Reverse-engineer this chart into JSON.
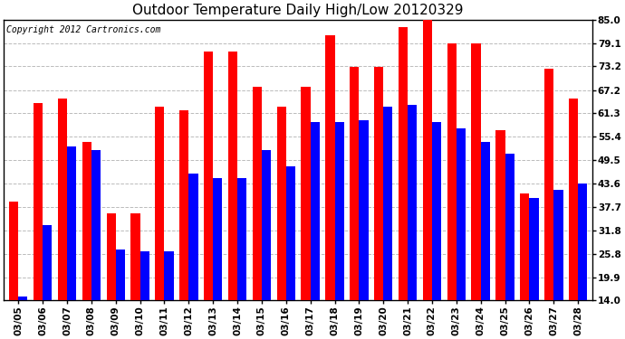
{
  "title": "Outdoor Temperature Daily High/Low 20120329",
  "copyright": "Copyright 2012 Cartronics.com",
  "dates": [
    "03/05",
    "03/06",
    "03/07",
    "03/08",
    "03/09",
    "03/10",
    "03/11",
    "03/12",
    "03/13",
    "03/14",
    "03/15",
    "03/16",
    "03/17",
    "03/18",
    "03/19",
    "03/20",
    "03/21",
    "03/22",
    "03/23",
    "03/24",
    "03/25",
    "03/26",
    "03/27",
    "03/28"
  ],
  "highs": [
    39.0,
    64.0,
    65.0,
    54.0,
    36.0,
    36.0,
    63.0,
    62.0,
    77.0,
    77.0,
    68.0,
    63.0,
    68.0,
    81.0,
    73.0,
    73.0,
    83.0,
    85.0,
    79.0,
    79.0,
    57.0,
    41.0,
    72.5,
    65.0
  ],
  "lows": [
    15.0,
    33.0,
    53.0,
    52.0,
    27.0,
    26.5,
    26.5,
    46.0,
    45.0,
    45.0,
    52.0,
    48.0,
    59.0,
    59.0,
    59.5,
    63.0,
    63.5,
    59.0,
    57.5,
    54.0,
    51.0,
    40.0,
    42.0,
    43.5
  ],
  "high_color": "#ff0000",
  "low_color": "#0000ff",
  "bg_color": "#ffffff",
  "grid_color": "#bbbbbb",
  "yticks": [
    14.0,
    19.9,
    25.8,
    31.8,
    37.7,
    43.6,
    49.5,
    55.4,
    61.3,
    67.2,
    73.2,
    79.1,
    85.0
  ],
  "ymin": 14.0,
  "ymax": 85.0,
  "title_fontsize": 11,
  "copyright_fontsize": 7,
  "tick_fontsize": 7.5,
  "bar_width": 0.38
}
